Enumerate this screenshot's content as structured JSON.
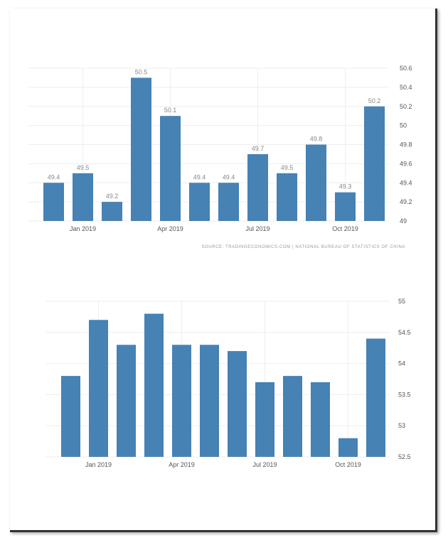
{
  "chart_data": [
    {
      "type": "bar",
      "color": "#4682b4",
      "source": "SOURCE: TRADINGECONOMICS.COM | NATIONAL BUREAU OF STATISTICS OF CHINA",
      "x_tick_labels": [
        "Jan 2019",
        "Apr 2019",
        "Jul 2019",
        "Oct 2019"
      ],
      "y_tick_labels": [
        "49",
        "49.2",
        "49.4",
        "49.6",
        "49.8",
        "50",
        "50.2",
        "50.4",
        "50.6"
      ],
      "ylim": [
        49,
        50.6
      ],
      "grid": true,
      "y_axis_position": "right",
      "values": [
        49.4,
        49.5,
        49.2,
        50.5,
        50.1,
        49.4,
        49.4,
        49.7,
        49.5,
        49.8,
        49.3,
        50.2
      ],
      "data_labels": [
        "49.4",
        "49.5",
        "49.2",
        "50.5",
        "50.1",
        "49.4",
        "49.4",
        "49.7",
        "49.5",
        "49.8",
        "49.3",
        "50.2"
      ]
    },
    {
      "type": "bar",
      "color": "#4682b4",
      "x_tick_labels": [
        "Jan 2019",
        "Apr 2019",
        "Jul 2019",
        "Oct 2019"
      ],
      "y_tick_labels": [
        "52.5",
        "53",
        "53.5",
        "54",
        "54.5",
        "55"
      ],
      "ylim": [
        52.5,
        55
      ],
      "grid": true,
      "y_axis_position": "right",
      "values": [
        53.8,
        54.7,
        54.3,
        54.8,
        54.3,
        54.3,
        54.2,
        53.7,
        53.8,
        53.7,
        52.8,
        54.4
      ]
    }
  ]
}
